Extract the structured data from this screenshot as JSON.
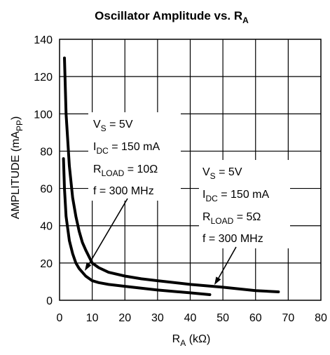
{
  "chart_data": {
    "type": "line",
    "title_main": "Oscillator Amplitude vs. R",
    "title_sub": "A",
    "xlabel_main": "R",
    "xlabel_sub": "A",
    "xlabel_unit": " (kΩ)",
    "ylabel_main": "AMPLITUDE (mA",
    "ylabel_sub": "PP",
    "ylabel_end": ")",
    "xlim": [
      0,
      80
    ],
    "ylim": [
      0,
      140
    ],
    "xticks": [
      0,
      10,
      20,
      30,
      40,
      50,
      60,
      70,
      80
    ],
    "yticks": [
      0,
      20,
      40,
      60,
      80,
      100,
      120,
      140
    ],
    "grid": true,
    "series": [
      {
        "x": [
          1.5,
          2,
          3,
          4,
          5,
          6,
          7,
          8,
          10,
          12,
          15,
          20,
          25,
          30,
          40,
          50,
          60,
          67
        ],
        "y": [
          130,
          100,
          72,
          55,
          45,
          37,
          31,
          27,
          20,
          17.5,
          15,
          13,
          11.5,
          10.5,
          8.5,
          7,
          5.2,
          4.5
        ]
      },
      {
        "x": [
          1.2,
          1.5,
          2,
          3,
          4,
          5,
          6,
          8,
          10,
          12,
          15,
          20,
          30,
          40,
          46
        ],
        "y": [
          76,
          60,
          45,
          32,
          25,
          20,
          17,
          13,
          10.5,
          9.5,
          8.5,
          7.5,
          5.5,
          4,
          3
        ]
      }
    ],
    "annotations": [
      {
        "lines": [
          {
            "main": "V",
            "sub": "S",
            "rest": " = 5V"
          },
          {
            "main": "I",
            "sub": "DC",
            "rest": " = 150 mA"
          },
          {
            "main": "R",
            "sub": "LOAD",
            "rest": " = 10Ω"
          },
          {
            "main": "f = 300 MHz",
            "sub": "",
            "rest": ""
          }
        ]
      },
      {
        "lines": [
          {
            "main": "V",
            "sub": "S",
            "rest": " = 5V"
          },
          {
            "main": "I",
            "sub": "DC",
            "rest": " = 150 mA"
          },
          {
            "main": "R",
            "sub": "LOAD",
            "rest": " = 5Ω"
          },
          {
            "main": "f = 300 MHz",
            "sub": "",
            "rest": ""
          }
        ]
      }
    ]
  }
}
